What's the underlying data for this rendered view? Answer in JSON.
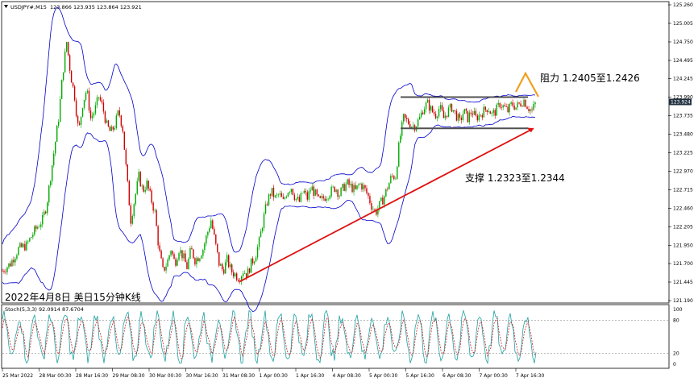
{
  "chart_data": [
    {
      "type": "candlestick",
      "header": {
        "symbol": "USDJPY#,M15",
        "ohlc": "123.866 123.935 123.864 123.921"
      },
      "caption": "2022年4月8日 美日15分钟K线",
      "current_price": "123.924",
      "y_ticks": [
        "125.260",
        "125.005",
        "124.750",
        "124.495",
        "124.245",
        "123.990",
        "123.735",
        "123.480",
        "123.225",
        "122.970",
        "122.715",
        "122.460",
        "122.205",
        "121.950",
        "121.700",
        "121.445",
        "121.190"
      ],
      "ylim": [
        121.19,
        125.26
      ],
      "x_ticks": [
        "25 Mar 2022",
        "28 Mar 00:30",
        "28 Mar 16:30",
        "29 Mar 08:30",
        "30 Mar 00:30",
        "30 Mar 16:30",
        "31 Mar 08:30",
        "1 Apr 00:30",
        "1 Apr 16:30",
        "4 Apr 08:30",
        "5 Apr 00:30",
        "5 Apr 16:30",
        "6 Apr 08:30",
        "7 Apr 00:30",
        "7 Apr 16:30"
      ],
      "price_path": [
        [
          0,
          121.6
        ],
        [
          10,
          121.7
        ],
        [
          20,
          121.9
        ],
        [
          30,
          121.95
        ],
        [
          40,
          122.15
        ],
        [
          50,
          122.3
        ],
        [
          55,
          122.5
        ],
        [
          60,
          122.9
        ],
        [
          65,
          123.3
        ],
        [
          70,
          123.7
        ],
        [
          75,
          124.3
        ],
        [
          80,
          124.75
        ],
        [
          85,
          124.3
        ],
        [
          90,
          124.0
        ],
        [
          95,
          123.5
        ],
        [
          100,
          123.9
        ],
        [
          105,
          124.1
        ],
        [
          110,
          123.7
        ],
        [
          115,
          123.8
        ],
        [
          120,
          124.0
        ],
        [
          125,
          123.85
        ],
        [
          130,
          123.6
        ],
        [
          135,
          123.5
        ],
        [
          140,
          123.6
        ],
        [
          145,
          123.8
        ],
        [
          150,
          123.55
        ],
        [
          155,
          122.9
        ],
        [
          160,
          122.3
        ],
        [
          165,
          122.6
        ],
        [
          170,
          122.9
        ],
        [
          175,
          122.7
        ],
        [
          180,
          122.8
        ],
        [
          185,
          122.6
        ],
        [
          190,
          122.4
        ],
        [
          195,
          121.9
        ],
        [
          200,
          121.6
        ],
        [
          205,
          121.7
        ],
        [
          210,
          121.9
        ],
        [
          215,
          121.7
        ],
        [
          220,
          121.9
        ],
        [
          225,
          121.8
        ],
        [
          230,
          121.65
        ],
        [
          235,
          121.9
        ],
        [
          240,
          121.75
        ],
        [
          245,
          121.8
        ],
        [
          250,
          121.9
        ],
        [
          255,
          122.1
        ],
        [
          260,
          122.3
        ],
        [
          265,
          122.0
        ],
        [
          270,
          121.7
        ],
        [
          275,
          121.6
        ],
        [
          280,
          121.75
        ],
        [
          285,
          121.6
        ],
        [
          290,
          121.55
        ],
        [
          295,
          121.5
        ],
        [
          300,
          121.6
        ],
        [
          305,
          121.55
        ],
        [
          310,
          121.7
        ],
        [
          315,
          121.8
        ],
        [
          320,
          122.0
        ],
        [
          325,
          122.3
        ],
        [
          330,
          122.55
        ],
        [
          335,
          122.7
        ],
        [
          340,
          122.6
        ],
        [
          345,
          122.65
        ],
        [
          350,
          122.55
        ],
        [
          355,
          122.7
        ],
        [
          360,
          122.75
        ],
        [
          365,
          122.6
        ],
        [
          370,
          122.55
        ],
        [
          375,
          122.7
        ],
        [
          380,
          122.6
        ],
        [
          385,
          122.75
        ],
        [
          390,
          122.65
        ],
        [
          395,
          122.55
        ],
        [
          400,
          122.6
        ],
        [
          405,
          122.65
        ],
        [
          410,
          122.7
        ],
        [
          415,
          122.75
        ],
        [
          420,
          122.65
        ],
        [
          425,
          122.75
        ],
        [
          430,
          122.8
        ],
        [
          435,
          122.75
        ],
        [
          440,
          122.7
        ],
        [
          445,
          122.8
        ],
        [
          450,
          122.75
        ],
        [
          455,
          122.65
        ],
        [
          460,
          122.5
        ],
        [
          465,
          122.4
        ],
        [
          470,
          122.5
        ],
        [
          475,
          122.6
        ],
        [
          480,
          122.75
        ],
        [
          485,
          122.9
        ],
        [
          490,
          122.9
        ],
        [
          495,
          123.4
        ],
        [
          500,
          123.7
        ],
        [
          505,
          123.65
        ],
        [
          510,
          123.6
        ],
        [
          515,
          123.6
        ],
        [
          520,
          123.7
        ],
        [
          525,
          123.85
        ],
        [
          530,
          123.9
        ],
        [
          535,
          123.8
        ],
        [
          540,
          123.75
        ],
        [
          545,
          123.85
        ],
        [
          550,
          123.7
        ],
        [
          555,
          123.8
        ],
        [
          560,
          123.85
        ],
        [
          565,
          123.75
        ],
        [
          570,
          123.65
        ],
        [
          575,
          123.8
        ],
        [
          580,
          123.7
        ],
        [
          585,
          123.8
        ],
        [
          590,
          123.7
        ],
        [
          595,
          123.75
        ],
        [
          600,
          123.8
        ],
        [
          605,
          123.85
        ],
        [
          610,
          123.75
        ],
        [
          615,
          123.8
        ],
        [
          620,
          123.9
        ],
        [
          625,
          123.85
        ],
        [
          630,
          123.8
        ],
        [
          635,
          123.9
        ],
        [
          640,
          123.85
        ],
        [
          645,
          123.9
        ],
        [
          650,
          123.95
        ],
        [
          655,
          123.85
        ],
        [
          660,
          123.8
        ],
        [
          665,
          123.92
        ]
      ],
      "annotations": {
        "resistance_label": "阻力 1.2405至1.2426",
        "support_label": "支撑 1.2323至1.2344",
        "channel_upper_price": 123.99,
        "channel_lower_price": 123.56,
        "trend_start_price": 121.45,
        "trend_end_price": 123.56
      },
      "colors": {
        "up_candle": "#00aa00",
        "down_candle": "#cc0000",
        "bands": "#0000cc",
        "trendline": "#e01010",
        "channel": "#505050",
        "resistance_arrow": "#f0a020",
        "price_box": "#203040"
      },
      "indicator": {
        "label": "Stoch(5,3,3) 92.0914 87.6704",
        "y_ticks": [
          "100",
          "80",
          "20",
          "0"
        ],
        "ylim": [
          0,
          100
        ],
        "levels": [
          80,
          20
        ],
        "main_color": "#20a0a0",
        "signal_color": "#cc2020"
      }
    }
  ]
}
